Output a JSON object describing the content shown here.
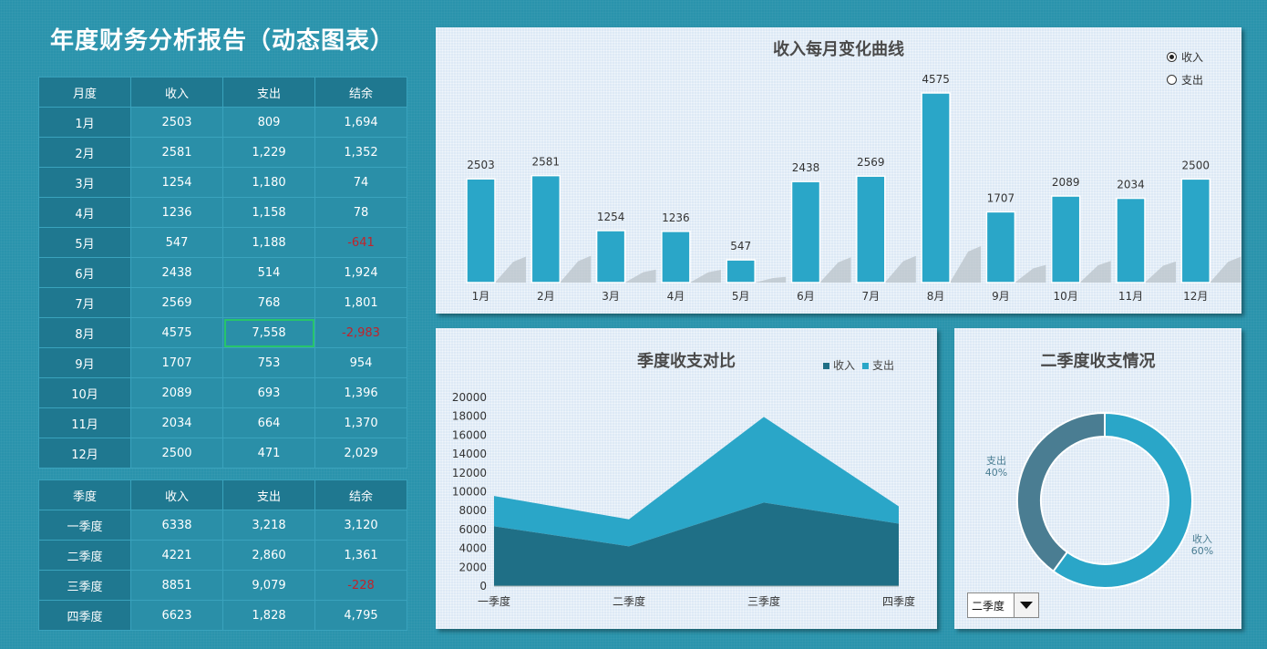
{
  "title": "年度财务分析报告（动态图表）",
  "monthly_table": {
    "headers": [
      "月度",
      "收入",
      "支出",
      "结余"
    ],
    "rows": [
      [
        "1月",
        "2503",
        "809",
        "1,694"
      ],
      [
        "2月",
        "2581",
        "1,229",
        "1,352"
      ],
      [
        "3月",
        "1254",
        "1,180",
        "74"
      ],
      [
        "4月",
        "1236",
        "1,158",
        "78"
      ],
      [
        "5月",
        "547",
        "1,188",
        "-641"
      ],
      [
        "6月",
        "2438",
        "514",
        "1,924"
      ],
      [
        "7月",
        "2569",
        "768",
        "1,801"
      ],
      [
        "8月",
        "4575",
        "7,558",
        "-2,983"
      ],
      [
        "9月",
        "1707",
        "753",
        "954"
      ],
      [
        "10月",
        "2089",
        "693",
        "1,396"
      ],
      [
        "11月",
        "2034",
        "664",
        "1,370"
      ],
      [
        "12月",
        "2500",
        "471",
        "2,029"
      ]
    ]
  },
  "quarter_table": {
    "headers": [
      "季度",
      "收入",
      "支出",
      "结余"
    ],
    "rows": [
      [
        "一季度",
        "6338",
        "3,218",
        "3,120"
      ],
      [
        "二季度",
        "4221",
        "2,860",
        "1,361"
      ],
      [
        "三季度",
        "8851",
        "9,079",
        "-228"
      ],
      [
        "四季度",
        "6623",
        "1,828",
        "4,795"
      ]
    ]
  },
  "colors": {
    "income": "#1f6f86",
    "expense": "#2aa6c8",
    "bar": "#2aa6c8",
    "negative": "#c2232a"
  },
  "monthly_chart": {
    "title": "收入每月变化曲线",
    "radio_options": [
      "收入",
      "支出"
    ],
    "selected": "收入"
  },
  "quarter_chart": {
    "title": "季度收支对比",
    "legend": [
      "收入",
      "支出"
    ]
  },
  "donut_chart": {
    "title": "二季度收支情况",
    "labels": [
      {
        "name": "支出",
        "pct": "40%"
      },
      {
        "name": "收入",
        "pct": "60%"
      }
    ],
    "dropdown_value": "二季度"
  },
  "chart_data": [
    {
      "type": "bar",
      "title": "收入每月变化曲线",
      "categories": [
        "1月",
        "2月",
        "3月",
        "4月",
        "5月",
        "6月",
        "7月",
        "8月",
        "9月",
        "10月",
        "11月",
        "12月"
      ],
      "values": [
        2503,
        2581,
        1254,
        1236,
        547,
        2438,
        2569,
        4575,
        1707,
        2089,
        2034,
        2500
      ],
      "ylim": [
        0,
        5000
      ]
    },
    {
      "type": "area",
      "title": "季度收支对比",
      "categories": [
        "一季度",
        "二季度",
        "三季度",
        "四季度"
      ],
      "series": [
        {
          "name": "收入",
          "values": [
            6338,
            4221,
            8851,
            6623
          ]
        },
        {
          "name": "支出",
          "values": [
            3218,
            2860,
            9079,
            1828
          ]
        }
      ],
      "stacked": true,
      "ylim": [
        0,
        20000
      ],
      "yticks": [
        0,
        2000,
        4000,
        6000,
        8000,
        10000,
        12000,
        14000,
        16000,
        18000,
        20000
      ]
    },
    {
      "type": "pie",
      "title": "二季度收支情况",
      "categories": [
        "收入",
        "支出"
      ],
      "values": [
        4221,
        2860
      ],
      "percent_labels": [
        "60%",
        "40%"
      ]
    }
  ]
}
